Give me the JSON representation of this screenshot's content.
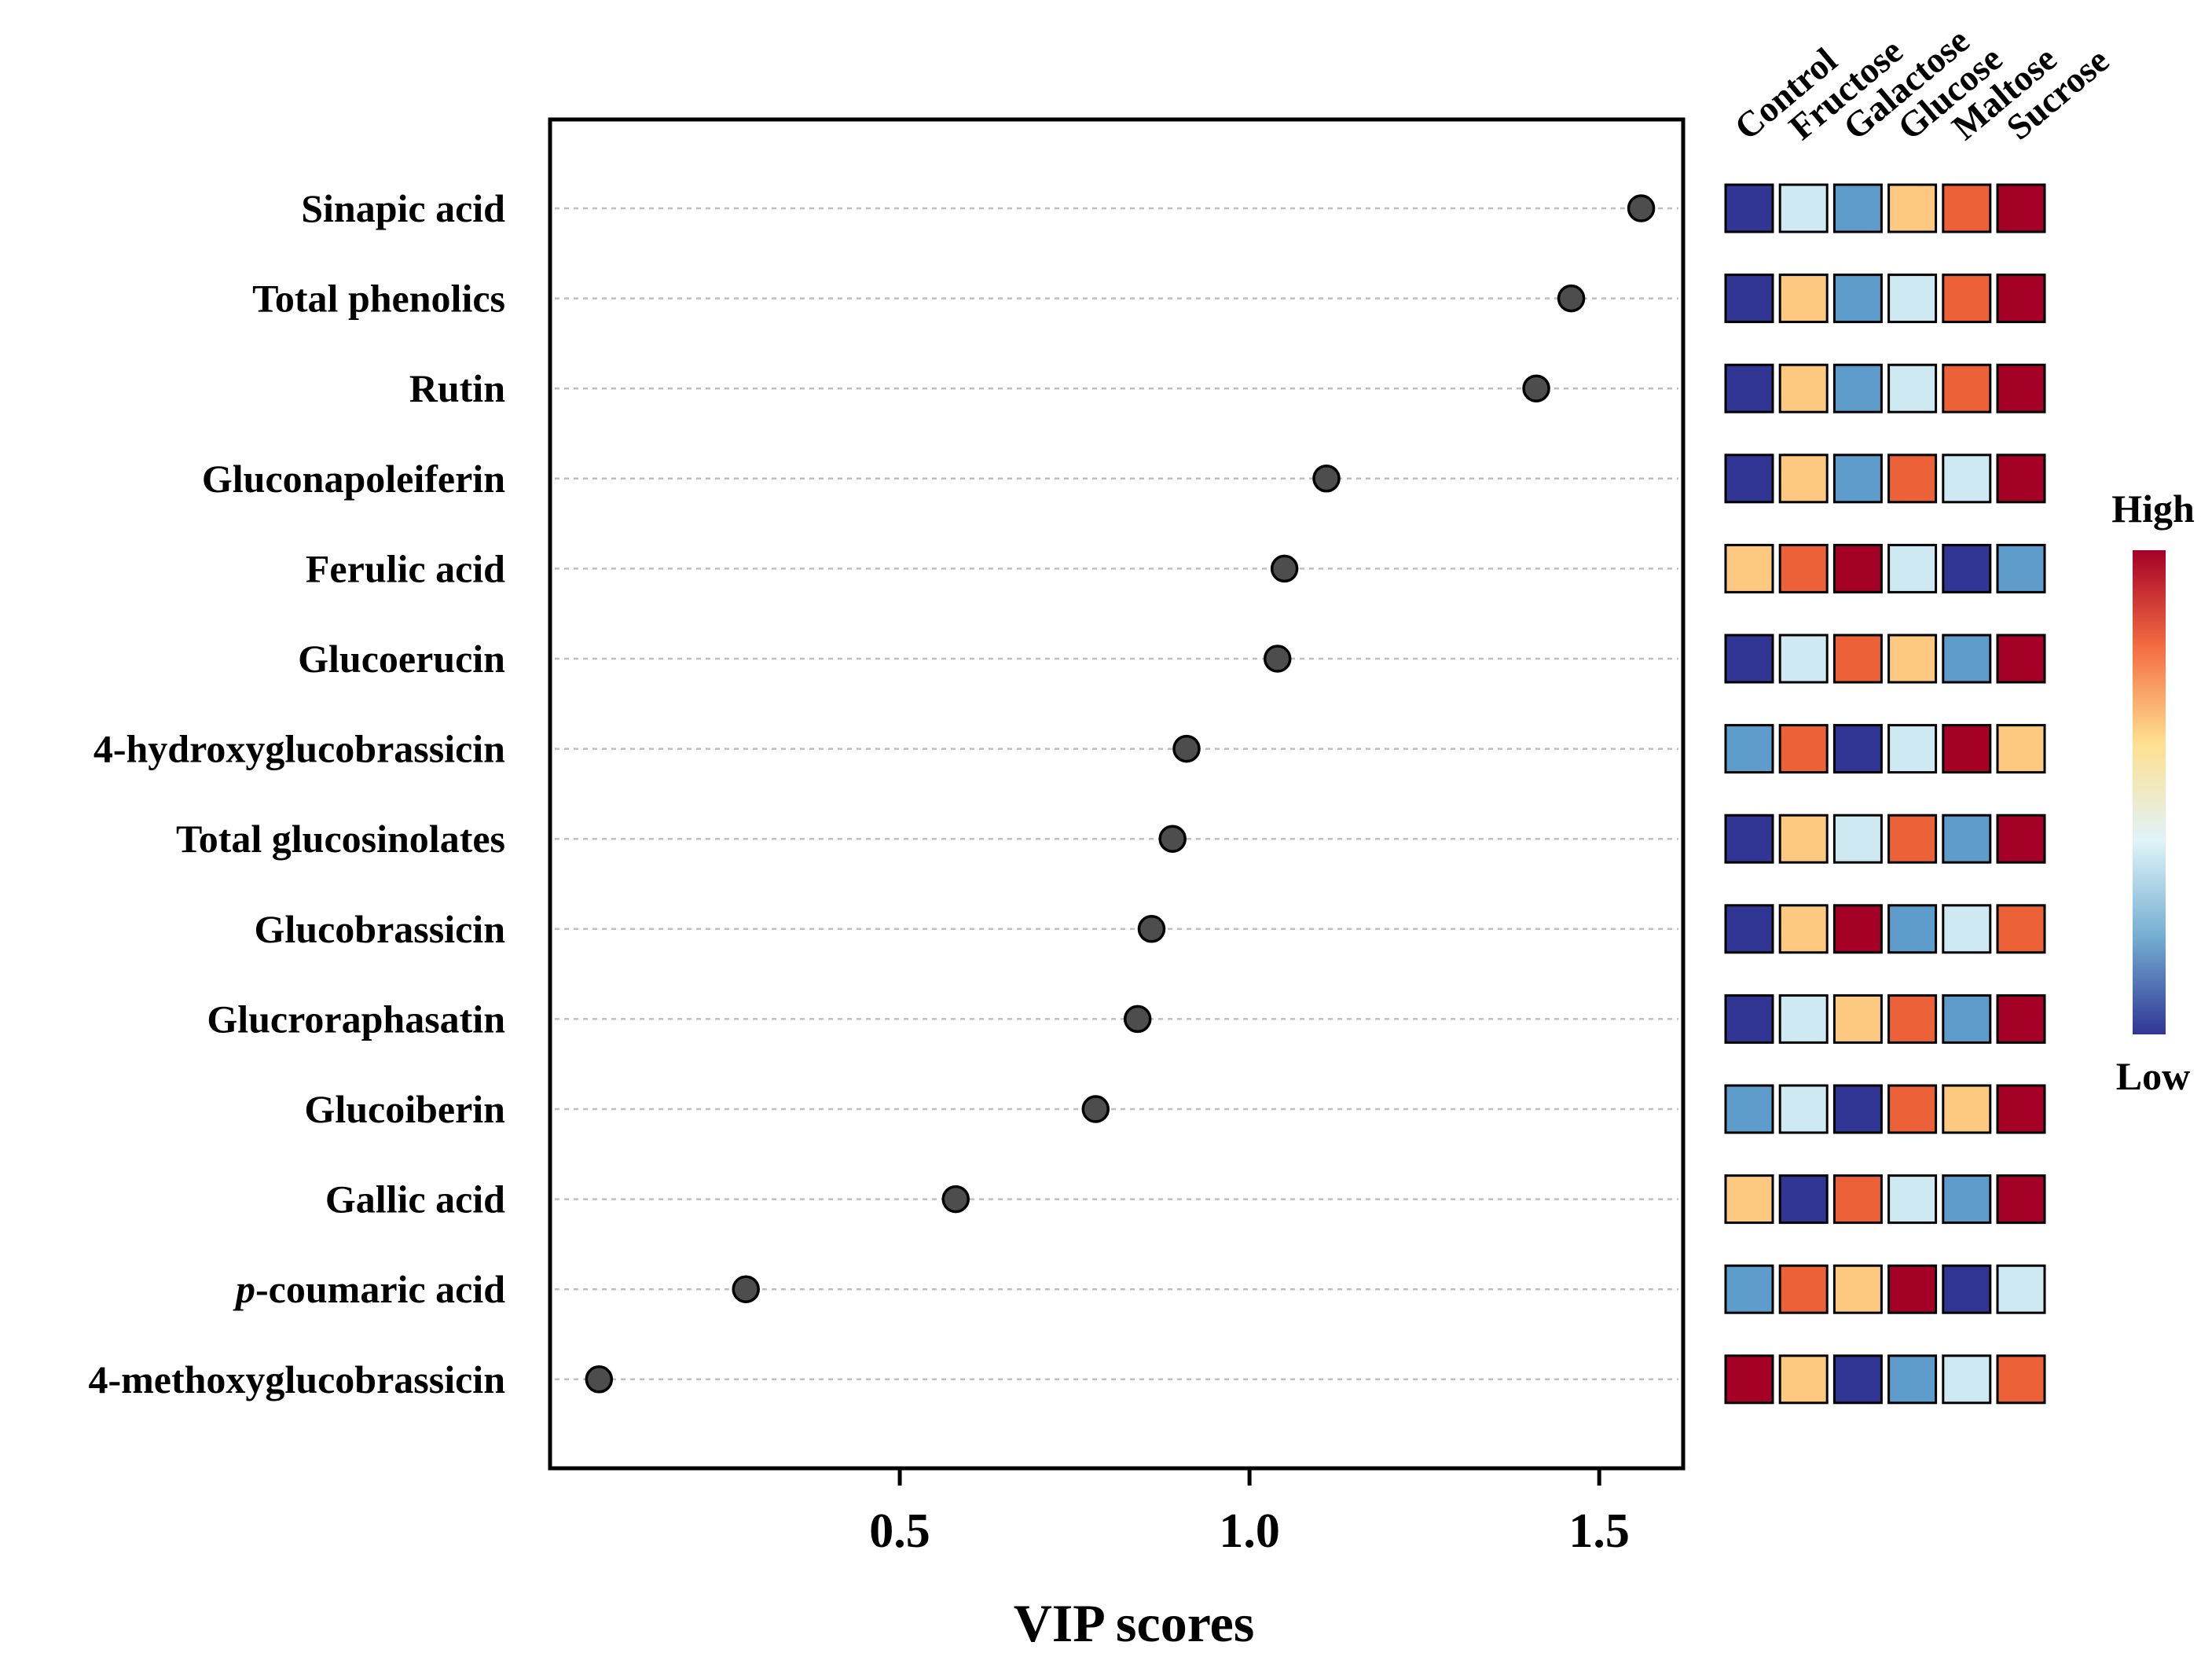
{
  "chart_data": {
    "type": "scatter",
    "subtype": "vip-dot-plot-with-heatmap",
    "title": "",
    "xlabel": "VIP scores",
    "ylabel": "",
    "xlim": [
      0.0,
      1.62
    ],
    "xticks": [
      {
        "value": 0.5,
        "label": "0.5"
      },
      {
        "value": 1.0,
        "label": "1.0"
      },
      {
        "value": 1.5,
        "label": "1.5"
      }
    ],
    "grid": "horizontal dashed",
    "groups": [
      "Control",
      "Fructose",
      "Galactose",
      "Glucose",
      "Maltose",
      "Sucrose"
    ],
    "level_colors": {
      "1": "#313695",
      "2": "#5e9ccb",
      "3": "#cfe9f2",
      "4": "#fdc980",
      "5": "#ed6139",
      "6": "#a50026"
    },
    "compounds": [
      {
        "name": "Sinapic acid",
        "name_pre": "",
        "name_post": "",
        "vip": 1.56,
        "levels": [
          1,
          3,
          2,
          4,
          5,
          6
        ]
      },
      {
        "name": "Total phenolics",
        "name_pre": "",
        "name_post": "",
        "vip": 1.46,
        "levels": [
          1,
          4,
          2,
          3,
          5,
          6
        ]
      },
      {
        "name": "Rutin",
        "name_pre": "",
        "name_post": "",
        "vip": 1.41,
        "levels": [
          1,
          4,
          2,
          3,
          5,
          6
        ]
      },
      {
        "name": "Gluconapoleiferin",
        "name_pre": "",
        "name_post": "",
        "vip": 1.11,
        "levels": [
          1,
          4,
          2,
          5,
          3,
          6
        ]
      },
      {
        "name": "Ferulic acid",
        "name_pre": "",
        "name_post": "",
        "vip": 1.05,
        "levels": [
          4,
          5,
          6,
          3,
          1,
          2
        ]
      },
      {
        "name": "Glucoerucin",
        "name_pre": "",
        "name_post": "",
        "vip": 1.04,
        "levels": [
          1,
          3,
          5,
          4,
          2,
          6
        ]
      },
      {
        "name": "4-hydroxyglucobrassicin",
        "name_pre": "",
        "name_post": "",
        "vip": 0.91,
        "levels": [
          2,
          5,
          1,
          3,
          6,
          4
        ]
      },
      {
        "name": "Total glucosinolates",
        "name_pre": "",
        "name_post": "",
        "vip": 0.89,
        "levels": [
          1,
          4,
          3,
          5,
          2,
          6
        ]
      },
      {
        "name": "Glucobrassicin",
        "name_pre": "",
        "name_post": "",
        "vip": 0.86,
        "levels": [
          1,
          4,
          6,
          2,
          3,
          5
        ]
      },
      {
        "name": "Glucroraphasatin",
        "name_pre": "",
        "name_post": "",
        "vip": 0.84,
        "levels": [
          1,
          3,
          4,
          5,
          2,
          6
        ]
      },
      {
        "name": "Glucoiberin",
        "name_pre": "",
        "name_post": "",
        "vip": 0.78,
        "levels": [
          2,
          3,
          1,
          5,
          4,
          6
        ]
      },
      {
        "name": "Gallic acid",
        "name_pre": "",
        "name_post": "",
        "vip": 0.58,
        "levels": [
          4,
          1,
          5,
          3,
          2,
          6
        ]
      },
      {
        "name": "p-coumaric acid",
        "name_pre": "p",
        "name_post": "-coumaric acid",
        "vip": 0.28,
        "levels": [
          2,
          5,
          4,
          6,
          1,
          3
        ]
      },
      {
        "name": "4-methoxyglucobrassicin",
        "name_pre": "",
        "name_post": "",
        "vip": 0.07,
        "levels": [
          6,
          4,
          1,
          2,
          3,
          5
        ]
      }
    ],
    "legend": {
      "high_label": "High",
      "low_label": "Low",
      "placement": "right",
      "gradient": [
        "#a50026",
        "#f46d43",
        "#fee090",
        "#e0f3f8",
        "#74add1",
        "#313695"
      ]
    }
  }
}
